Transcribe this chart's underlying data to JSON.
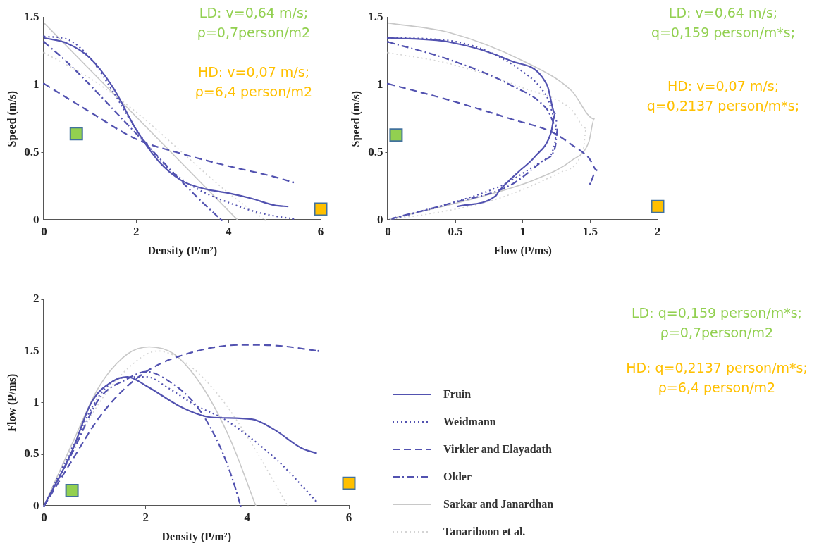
{
  "chart_data": [
    {
      "type": "line",
      "xlabel": "Density (P/m²)",
      "ylabel": "Speed (m/s)",
      "xlim": [
        0,
        6
      ],
      "ylim": [
        0,
        1.5
      ],
      "xticks": [
        0,
        2,
        4,
        6
      ],
      "yticks": [
        0,
        0.5,
        1,
        1.5
      ],
      "grid": false,
      "marker": "none",
      "annotations": [
        "LD: v=0,64 m/s;\nρ=0,7person/m2",
        "HD: v=0,07 m/s;\nρ=6,4 person/m2"
      ],
      "series": [
        {
          "color": "#5252b0",
          "line_style": "solid",
          "x": [
            0,
            0.5,
            1,
            1.5,
            2,
            2.5,
            3,
            3.5,
            4,
            4.5,
            5,
            5.3
          ],
          "values": [
            1.35,
            1.31,
            1.2,
            0.98,
            0.67,
            0.43,
            0.29,
            0.23,
            0.2,
            0.16,
            0.11,
            0.1
          ]
        },
        {
          "color": "#5252b0",
          "line_style": "dotted",
          "x": [
            0,
            0.5,
            1,
            1.5,
            2,
            2.5,
            3,
            3.5,
            4,
            4.5,
            5,
            5.4
          ],
          "values": [
            1.36,
            1.34,
            1.2,
            0.95,
            0.67,
            0.45,
            0.3,
            0.2,
            0.13,
            0.07,
            0.03,
            0.01
          ]
        },
        {
          "color": "#5252b0",
          "line_style": "dashed",
          "x": [
            0,
            1,
            2,
            3,
            4,
            5,
            5.4
          ],
          "values": [
            1.01,
            0.8,
            0.6,
            0.49,
            0.4,
            0.32,
            0.28
          ]
        },
        {
          "color": "#5252b0",
          "line_style": "dashdot",
          "x": [
            0,
            0.5,
            1,
            1.5,
            2,
            2.5,
            3,
            3.5,
            3.85
          ],
          "values": [
            1.32,
            1.17,
            1,
            0.82,
            0.64,
            0.46,
            0.28,
            0.11,
            0
          ]
        },
        {
          "color": "#c8c8c8",
          "line_style": "solid",
          "x": [
            0,
            4.2
          ],
          "values": [
            1.46,
            0
          ]
        },
        {
          "color": "#d4d4d4",
          "line_style": "dotted",
          "x": [
            0,
            1,
            2,
            3,
            4,
            4.8
          ],
          "values": [
            1.24,
            1.05,
            0.8,
            0.5,
            0.2,
            0
          ]
        },
        {
          "type": "scatter",
          "marker": "square",
          "colors": [
            "#92d050",
            "#ffc000"
          ],
          "x": [
            0.7,
            6
          ],
          "values": [
            0.64,
            0.08
          ]
        }
      ]
    },
    {
      "type": "line",
      "xlabel": "Flow (P/ms)",
      "ylabel": "Speed (m/s)",
      "xlim": [
        0,
        2
      ],
      "ylim": [
        0,
        1.5
      ],
      "xticks": [
        0,
        0.5,
        1,
        1.5,
        2
      ],
      "yticks": [
        0,
        0.5,
        1,
        1.5
      ],
      "grid": false,
      "marker": "none",
      "annotations": [
        "LD: v=0,64 m/s;\nq=0,159 person/m*s;",
        "HD: v=0,07 m/s;\nq=0,2137 person/m*s;"
      ],
      "series": [
        {
          "color": "#5252b0",
          "line_style": "solid",
          "x": [
            0,
            0.45,
            0.91,
            1.18,
            1.24,
            1.21,
            1.09,
            0.96,
            0.82,
            0.8,
            0.51
          ],
          "values": [
            1.35,
            1.32,
            1.18,
            1,
            0.79,
            0.65,
            0.47,
            0.35,
            0.21,
            0.18,
            0.1
          ]
        },
        {
          "color": "#5252b0",
          "line_style": "dotted",
          "x": [
            0,
            0.45,
            1,
            1.18,
            1.25,
            1.24,
            1.15,
            0.85,
            0.45,
            0.04
          ],
          "values": [
            1.35,
            1.33,
            1.1,
            0.91,
            0.74,
            0.58,
            0.44,
            0.26,
            0.12,
            0.01
          ]
        },
        {
          "color": "#5252b0",
          "line_style": "dashed",
          "x": [
            0,
            0.45,
            0.91,
            1.22,
            1.36,
            1.49,
            1.55,
            1.5
          ],
          "values": [
            1.01,
            0.89,
            0.75,
            0.65,
            0.56,
            0.46,
            0.37,
            0.27
          ]
        },
        {
          "color": "#5252b0",
          "line_style": "dashdot",
          "x": [
            0,
            0.45,
            0.91,
            1.18,
            1.26,
            1.24,
            1.15,
            0.91,
            0.45,
            0.02
          ],
          "values": [
            1.32,
            1.19,
            1,
            0.82,
            0.68,
            0.54,
            0.44,
            0.26,
            0.12,
            0.01
          ]
        },
        {
          "color": "#c8c8c8",
          "line_style": "solid",
          "x": [
            0,
            0.45,
            1,
            1.36,
            1.53,
            1.49,
            1.36,
            1.09,
            0.64,
            0.02
          ],
          "values": [
            1.46,
            1.39,
            1.18,
            0.96,
            0.75,
            0.58,
            0.44,
            0.3,
            0.16,
            0.01
          ]
        },
        {
          "color": "#d4d4d4",
          "line_style": "dotted",
          "x": [
            0,
            0.45,
            1,
            1.36,
            1.47,
            1.45,
            1.27,
            0.82,
            0.27,
            0.02
          ],
          "values": [
            1.24,
            1.16,
            0.98,
            0.82,
            0.68,
            0.53,
            0.35,
            0.16,
            0.04,
            0.01
          ]
        },
        {
          "type": "scatter",
          "marker": "square",
          "colors": [
            "#92d050",
            "#ffc000"
          ],
          "x": [
            0.06,
            2
          ],
          "values": [
            0.63,
            0.1
          ]
        }
      ]
    },
    {
      "type": "line",
      "xlabel": "Density (P/m²)",
      "ylabel": "Flow (P/ms)",
      "xlim": [
        0,
        6
      ],
      "ylim": [
        0,
        2
      ],
      "xticks": [
        0,
        2,
        4,
        6
      ],
      "yticks": [
        0,
        0.5,
        1,
        1.5,
        2
      ],
      "grid": false,
      "marker": "none",
      "legend": "right",
      "annotations": [
        "LD: q=0,159 person/m*s;\nρ=0,7person/m2",
        "HD: q=0,2137 person/m*s;\nρ=6,4 person/m2"
      ],
      "series": [
        {
          "name": "Fruin",
          "color": "#5252b0",
          "line_style": "solid",
          "x": [
            0,
            0.55,
            0.93,
            1.36,
            1.64,
            2.02,
            2.73,
            3.27,
            4.09,
            4.53,
            5.07,
            5.37
          ],
          "values": [
            0,
            0.53,
            1,
            1.21,
            1.25,
            1.16,
            0.95,
            0.86,
            0.84,
            0.74,
            0.56,
            0.51
          ]
        },
        {
          "name": "Weidmann",
          "color": "#5252b0",
          "line_style": "dotted",
          "x": [
            0,
            0.55,
            1.09,
            1.53,
            2.02,
            2.45,
            3,
            3.55,
            4.09,
            4.64,
            5.35
          ],
          "values": [
            0,
            0.56,
            1.07,
            1.24,
            1.25,
            1.14,
            0.97,
            0.84,
            0.65,
            0.42,
            0.05
          ]
        },
        {
          "name": "Virkler and Elayadath",
          "color": "#5252b0",
          "line_style": "dashed",
          "x": [
            0,
            0.55,
            1.09,
            1.64,
            2.18,
            2.73,
            3.55,
            4.09,
            4.64,
            5.4
          ],
          "values": [
            0,
            0.44,
            0.86,
            1.16,
            1.35,
            1.46,
            1.55,
            1.56,
            1.55,
            1.5
          ]
        },
        {
          "name": "Older",
          "color": "#5252b0",
          "line_style": "dashdot",
          "x": [
            0,
            0.55,
            1.09,
            1.64,
            2.02,
            2.45,
            3,
            3.44,
            3.71,
            3.87
          ],
          "values": [
            0,
            0.51,
            1.04,
            1.23,
            1.3,
            1.21,
            0.97,
            0.6,
            0.26,
            0
          ]
        },
        {
          "name": "Sarkar and Janardhan",
          "color": "#c8c8c8",
          "line_style": "solid",
          "x": [
            0,
            0.55,
            1.09,
            1.64,
            2.07,
            2.56,
            3.11,
            3.66,
            4.17
          ],
          "values": [
            0,
            0.6,
            1.16,
            1.47,
            1.54,
            1.47,
            1.16,
            0.65,
            0
          ]
        },
        {
          "name": "Tanariboon et al.",
          "color": "#d4d4d4",
          "line_style": "dotted",
          "x": [
            0,
            0.55,
            1.09,
            1.69,
            2.24,
            2.78,
            3.44,
            4.09,
            4.8
          ],
          "values": [
            0,
            0.53,
            1,
            1.35,
            1.5,
            1.39,
            1.07,
            0.6,
            0
          ]
        },
        {
          "type": "scatter",
          "marker": "square",
          "colors": [
            "#92d050",
            "#ffc000"
          ],
          "x": [
            0.55,
            6
          ],
          "values": [
            0.15,
            0.22
          ]
        }
      ]
    }
  ]
}
